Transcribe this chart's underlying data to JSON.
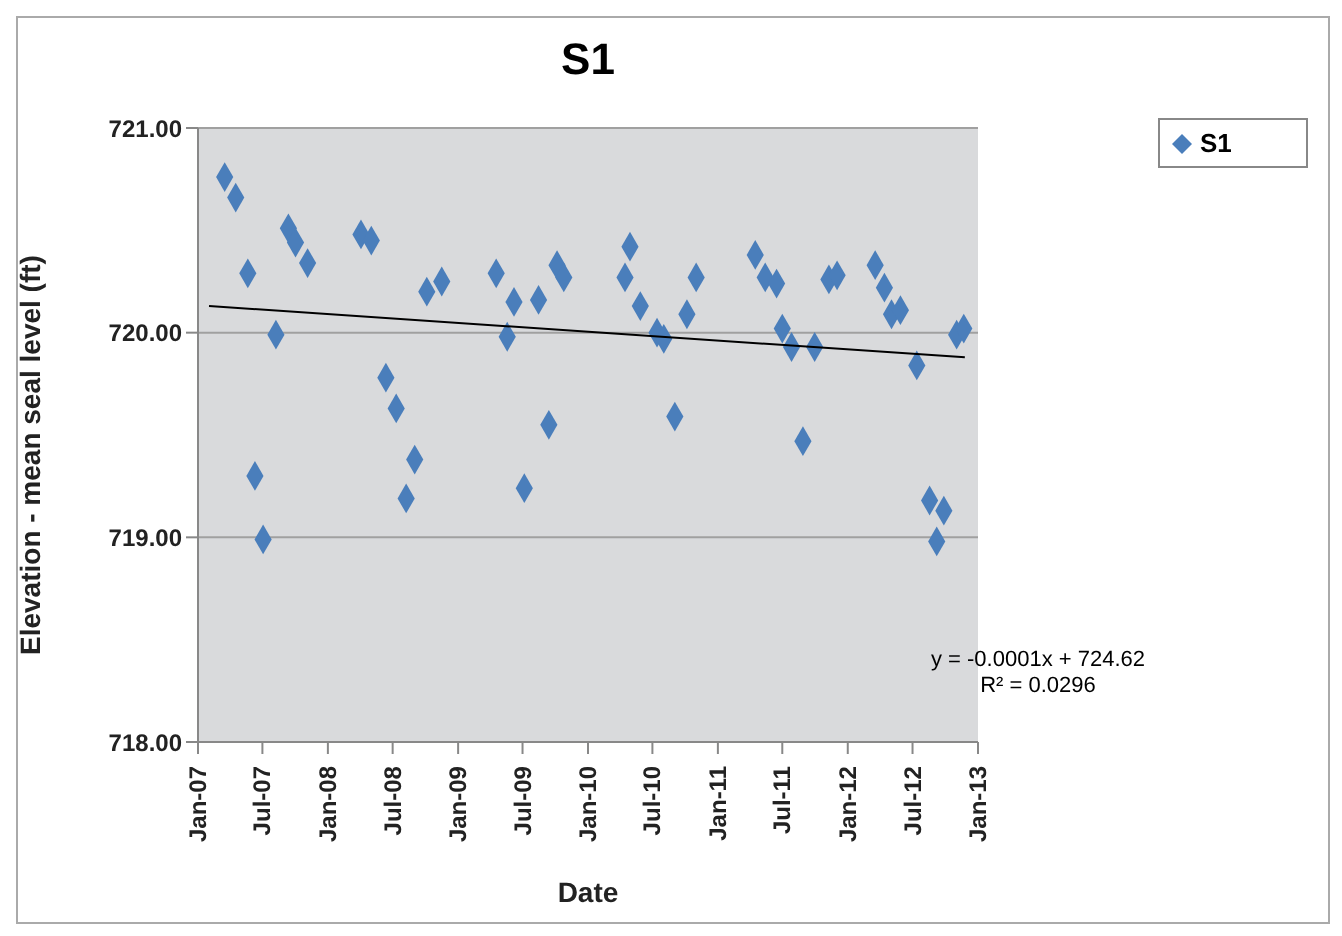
{
  "chart_data": {
    "type": "scatter",
    "title": "S1",
    "xlabel": "Date",
    "ylabel": "Elevation - mean seal level (ft)",
    "annotations": [
      "y = -0.0001x + 724.62",
      "R² = 0.0296"
    ],
    "xlim": [
      "2007-01",
      "2013-01"
    ],
    "xticks": [
      {
        "value": "2007-01",
        "label": "Jan-07"
      },
      {
        "value": "2007-07",
        "label": "Jul-07"
      },
      {
        "value": "2008-01",
        "label": "Jan-08"
      },
      {
        "value": "2008-07",
        "label": "Jul-08"
      },
      {
        "value": "2009-01",
        "label": "Jan-09"
      },
      {
        "value": "2009-07",
        "label": "Jul-09"
      },
      {
        "value": "2010-01",
        "label": "Jan-10"
      },
      {
        "value": "2010-07",
        "label": "Jul-10"
      },
      {
        "value": "2011-01",
        "label": "Jan-11"
      },
      {
        "value": "2011-07",
        "label": "Jul-11"
      },
      {
        "value": "2012-01",
        "label": "Jan-12"
      },
      {
        "value": "2012-07",
        "label": "Jul-12"
      },
      {
        "value": "2013-01",
        "label": "Jan-13"
      }
    ],
    "ylim": [
      718,
      721
    ],
    "yticks": [
      {
        "value": 718,
        "label": "718.00"
      },
      {
        "value": 719,
        "label": "719.00"
      },
      {
        "value": 720,
        "label": "720.00"
      },
      {
        "value": 721,
        "label": "721.00"
      }
    ],
    "grid": "y",
    "legend": "right",
    "marker": "diamond",
    "series": [
      {
        "name": "S1",
        "color": "#4a7ebb",
        "x": [
          "2007-03-17",
          "2007-04-17",
          "2007-05-21",
          "2007-06-10",
          "2007-07-03",
          "2007-08-08",
          "2007-09-12",
          "2007-10-02",
          "2007-11-05",
          "2008-04-03",
          "2008-05-02",
          "2008-06-12",
          "2008-07-11",
          "2008-08-08",
          "2008-09-01",
          "2008-10-05",
          "2008-11-16",
          "2009-04-18",
          "2009-05-19",
          "2009-06-07",
          "2009-07-06",
          "2009-08-15",
          "2009-09-13",
          "2009-10-06",
          "2009-10-25",
          "2010-04-15",
          "2010-04-29",
          "2010-05-28",
          "2010-07-14",
          "2010-08-02",
          "2010-09-02",
          "2010-10-06",
          "2010-11-01",
          "2011-04-16",
          "2011-05-14",
          "2011-06-15",
          "2011-07-01",
          "2011-07-27",
          "2011-08-28",
          "2011-09-30",
          "2011-11-09",
          "2011-12-02",
          "2012-03-18",
          "2012-04-13",
          "2012-05-03",
          "2012-05-28",
          "2012-07-13",
          "2012-08-18",
          "2012-09-07",
          "2012-09-27",
          "2012-11-02",
          "2012-11-22"
        ],
        "values": [
          720.76,
          720.66,
          720.29,
          719.3,
          718.99,
          719.99,
          720.51,
          720.44,
          720.34,
          720.48,
          720.45,
          719.78,
          719.63,
          719.19,
          719.38,
          720.2,
          720.25,
          720.29,
          719.98,
          720.15,
          719.24,
          720.16,
          719.55,
          720.33,
          720.27,
          720.27,
          720.42,
          720.13,
          720,
          719.97,
          719.59,
          720.09,
          720.27,
          720.38,
          720.27,
          720.24,
          720.02,
          719.93,
          719.47,
          719.93,
          720.26,
          720.28,
          720.33,
          720.22,
          720.09,
          720.11,
          719.84,
          719.18,
          718.98,
          719.13,
          719.99,
          720.02
        ]
      },
      {
        "type": "line",
        "marker": "none",
        "color": "#000000",
        "x": [
          "2007-02-01",
          "2012-11-25"
        ],
        "values": [
          720.13,
          719.88
        ]
      }
    ]
  }
}
